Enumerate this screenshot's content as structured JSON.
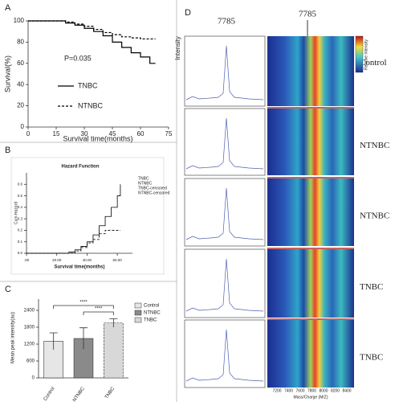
{
  "chart_data": [
    {
      "type": "line",
      "panel_label": "A",
      "y_label": "Survival(%)",
      "x_label": "Survival time(months)",
      "annotation": "P=0.035",
      "x": [
        0,
        10,
        20,
        25,
        30,
        35,
        40,
        45,
        50,
        55,
        60,
        65,
        68
      ],
      "series": [
        {
          "name": "TNBC",
          "color": "#000000",
          "dash": false,
          "values": [
            100,
            100,
            98,
            96,
            93,
            90,
            86,
            80,
            75,
            70,
            66,
            60,
            60
          ]
        },
        {
          "name": "NTNBC",
          "color": "#000000",
          "dash": true,
          "values": [
            100,
            100,
            99,
            97,
            95,
            92,
            89,
            87,
            85,
            84,
            83,
            83,
            83
          ]
        }
      ],
      "xlim": [
        0,
        75
      ],
      "xticks": [
        0,
        15,
        30,
        45,
        60,
        75
      ],
      "ylim": [
        0,
        100
      ],
      "yticks": [
        0,
        20,
        40,
        60,
        80,
        100
      ]
    },
    {
      "type": "line",
      "panel_label": "B",
      "title": "Hazard Function",
      "y_label": "Cum Hazard",
      "x_label": "Survival time(months)",
      "x": [
        0,
        20,
        28,
        32,
        36,
        40,
        44,
        48,
        52,
        56,
        60,
        62
      ],
      "series": [
        {
          "name": "TNBC",
          "color": "#000000",
          "dash": false,
          "values": [
            0,
            0,
            0.01,
            0.03,
            0.06,
            0.1,
            0.16,
            0.24,
            0.32,
            0.4,
            0.5,
            0.6
          ]
        },
        {
          "name": "NTNBC",
          "color": "#000000",
          "dash": true,
          "values": [
            0,
            0,
            0,
            0.02,
            0.05,
            0.09,
            0.12,
            0.17,
            0.2,
            0.2,
            0.2,
            0.2
          ]
        }
      ],
      "censored_legend": [
        "TNBC-censored",
        "NTNBC-censored"
      ],
      "xlim": [
        0,
        70
      ],
      "xticks": [
        {
          "value": 0,
          "label": ".00"
        },
        {
          "value": 20,
          "label": "20.00"
        },
        {
          "value": 40,
          "label": "40.00"
        },
        {
          "value": 60,
          "label": "60.00"
        }
      ],
      "ylim": [
        0,
        0.7
      ],
      "yticks": [
        {
          "value": 0,
          "label": "0.0"
        },
        0.1,
        0.2,
        0.3,
        0.4,
        0.5,
        0.6
      ]
    },
    {
      "type": "bar",
      "panel_label": "C",
      "y_label": "Mean peak intensity(au)",
      "significance": [
        "****",
        "****"
      ],
      "categories": [
        "Control",
        "NTNBC",
        "TNBC"
      ],
      "values": [
        1300,
        1400,
        1950
      ],
      "errors": [
        300,
        380,
        150
      ],
      "colors": [
        "#e6e6e6",
        "#8a8a8a",
        "#d8d8d8"
      ],
      "ylim": [
        0,
        2800
      ],
      "yticks": [
        0,
        600,
        1200,
        1800,
        2400
      ]
    }
  ],
  "panel_d": {
    "panel_label": "D",
    "peak_labels": [
      "7785",
      "7785"
    ],
    "y_label": "Intensity",
    "colorbar_label": "Relative Intensity",
    "row_labels": [
      "Control",
      "NTNBC",
      "NTNBC",
      "TNBC",
      "TNBC"
    ],
    "x_label": "Mass/Charge (M/Z)",
    "x_ticks": [
      "7200",
      "7400",
      "7600",
      "7800",
      "8000",
      "8200",
      "8400"
    ]
  }
}
